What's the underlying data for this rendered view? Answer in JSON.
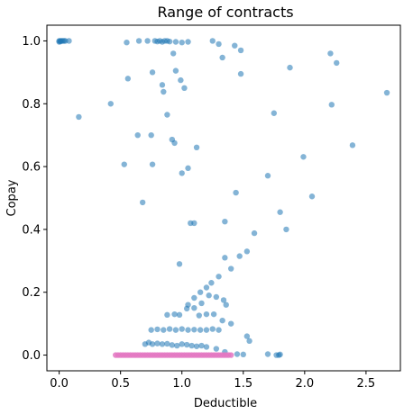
{
  "chart_data": {
    "type": "scatter",
    "title": "Range of contracts",
    "xlabel": "Deductible",
    "ylabel": "Copay",
    "xlim": [
      -0.1,
      2.78
    ],
    "ylim": [
      -0.05,
      1.05
    ],
    "xticks": [
      0.0,
      0.5,
      1.0,
      1.5,
      2.0,
      2.5
    ],
    "xtick_labels": [
      "0.0",
      "0.5",
      "1.0",
      "1.5",
      "2.0",
      "2.5"
    ],
    "yticks": [
      0.0,
      0.2,
      0.4,
      0.6,
      0.8,
      1.0
    ],
    "ytick_labels": [
      "0.0",
      "0.2",
      "0.4",
      "0.6",
      "0.8",
      "1.0"
    ],
    "grid": false,
    "series": [
      {
        "color": "#1f77b4",
        "alpha": 0.55,
        "x": [
          0.0,
          0.01,
          0.02,
          0.01,
          0.0,
          0.03,
          0.04,
          0.05,
          0.08,
          0.55,
          0.65,
          0.72,
          0.78,
          0.8,
          0.82,
          0.84,
          0.86,
          0.88,
          0.9,
          0.93,
          0.95,
          1.0,
          1.05,
          1.25,
          1.3,
          1.43,
          1.48,
          2.21,
          2.26,
          0.95,
          1.33,
          1.48,
          0.56,
          0.76,
          0.84,
          0.99,
          1.02,
          0.85,
          1.88,
          2.67,
          0.16,
          0.42,
          2.22,
          1.75,
          0.88,
          0.64,
          0.75,
          0.94,
          0.92,
          1.12,
          2.39,
          1.99,
          0.53,
          0.76,
          1.0,
          1.05,
          1.7,
          1.44,
          0.68,
          2.06,
          1.07,
          1.1,
          1.35,
          1.8,
          1.59,
          1.85,
          0.98,
          1.53,
          1.47,
          1.4,
          1.35,
          1.3,
          1.24,
          1.2,
          1.15,
          1.1,
          1.05,
          1.34,
          1.36,
          1.28,
          1.22,
          1.16,
          1.1,
          1.04,
          0.98,
          1.2,
          1.26,
          1.14,
          1.33,
          1.4,
          0.88,
          0.94,
          0.75,
          0.8,
          0.85,
          0.9,
          0.95,
          1.0,
          1.05,
          1.1,
          1.15,
          1.2,
          1.25,
          1.3,
          1.53,
          1.55,
          1.7,
          1.77,
          1.79,
          1.8,
          0.7,
          0.73,
          0.76,
          0.8,
          0.84,
          0.88,
          0.92,
          0.96,
          1.0,
          1.04,
          1.08,
          1.12,
          1.16,
          1.2,
          1.28,
          1.35,
          1.45,
          1.5
        ],
        "y": [
          1.0,
          1.0,
          1.0,
          0.998,
          0.997,
          1.0,
          1.0,
          1.0,
          1.0,
          0.995,
          1.0,
          1.0,
          1.0,
          0.998,
          1.0,
          0.997,
          1.0,
          1.0,
          0.998,
          0.96,
          0.997,
          0.995,
          0.997,
          1.0,
          0.99,
          0.985,
          0.97,
          0.96,
          0.93,
          0.905,
          0.947,
          0.895,
          0.88,
          0.9,
          0.86,
          0.875,
          0.85,
          0.838,
          0.915,
          0.835,
          0.758,
          0.8,
          0.797,
          0.77,
          0.765,
          0.7,
          0.7,
          0.675,
          0.686,
          0.661,
          0.668,
          0.631,
          0.607,
          0.607,
          0.579,
          0.595,
          0.571,
          0.517,
          0.486,
          0.505,
          0.42,
          0.42,
          0.425,
          0.455,
          0.388,
          0.4,
          0.29,
          0.33,
          0.315,
          0.275,
          0.31,
          0.25,
          0.23,
          0.215,
          0.2,
          0.182,
          0.16,
          0.175,
          0.16,
          0.185,
          0.19,
          0.165,
          0.15,
          0.148,
          0.128,
          0.13,
          0.13,
          0.126,
          0.11,
          0.1,
          0.128,
          0.13,
          0.08,
          0.082,
          0.08,
          0.083,
          0.08,
          0.083,
          0.08,
          0.081,
          0.08,
          0.08,
          0.083,
          0.08,
          0.06,
          0.045,
          0.003,
          0.0,
          0.0,
          0.002,
          0.035,
          0.04,
          0.035,
          0.037,
          0.035,
          0.036,
          0.032,
          0.03,
          0.035,
          0.033,
          0.03,
          0.028,
          0.03,
          0.026,
          0.02,
          0.01,
          0.003,
          0.002
        ]
      },
      {
        "color": "#e377c2",
        "alpha": 0.85,
        "x": [
          0.46,
          0.48,
          0.5,
          0.52,
          0.54,
          0.56,
          0.58,
          0.6,
          0.62,
          0.64,
          0.66,
          0.68,
          0.7,
          0.72,
          0.74,
          0.76,
          0.78,
          0.8,
          0.82,
          0.84,
          0.86,
          0.88,
          0.9,
          0.92,
          0.94,
          0.96,
          0.98,
          1.0,
          1.02,
          1.04,
          1.06,
          1.08,
          1.1,
          1.12,
          1.14,
          1.16,
          1.18,
          1.2,
          1.22,
          1.24,
          1.26,
          1.28,
          1.3,
          1.32,
          1.34,
          1.36,
          1.38,
          1.4
        ],
        "y": [
          0,
          0,
          0,
          0,
          0,
          0,
          0,
          0,
          0,
          0,
          0,
          0,
          0,
          0,
          0,
          0,
          0,
          0,
          0,
          0,
          0,
          0,
          0,
          0,
          0,
          0,
          0,
          0,
          0,
          0,
          0,
          0,
          0,
          0,
          0,
          0,
          0,
          0,
          0,
          0,
          0,
          0,
          0,
          0,
          0,
          0,
          0,
          0
        ]
      }
    ]
  }
}
